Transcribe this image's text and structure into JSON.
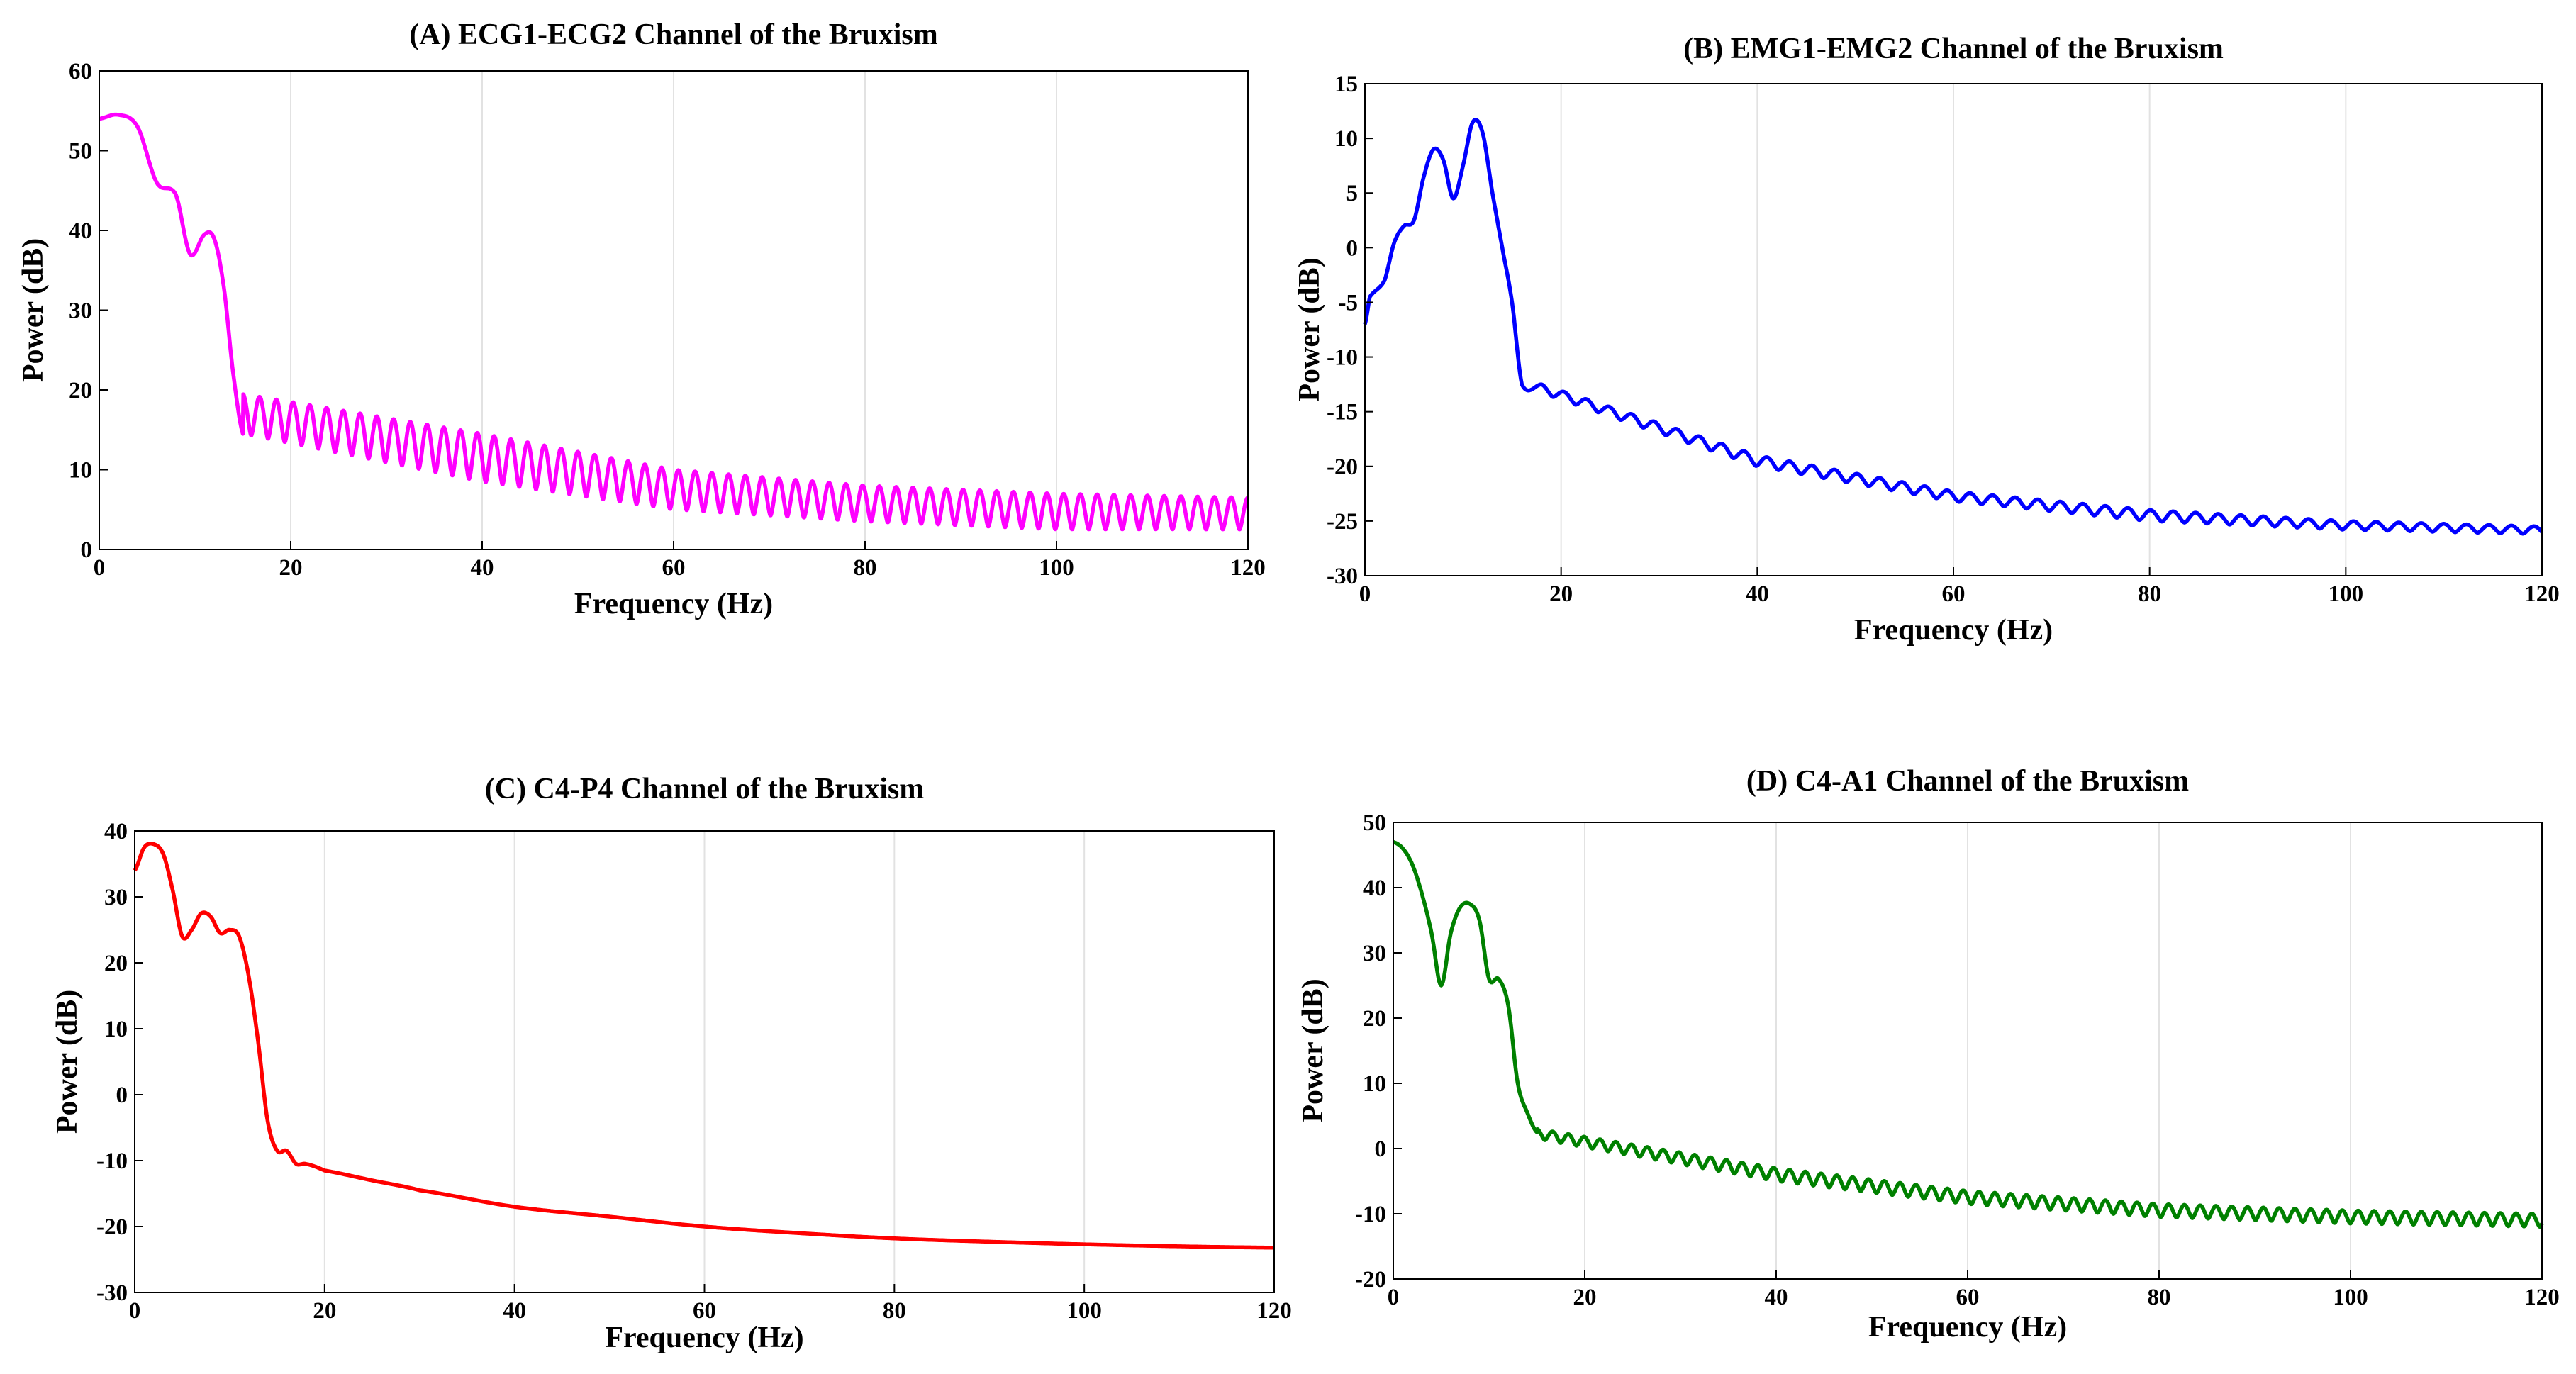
{
  "chart_data": [
    {
      "type": "line",
      "title": "(A) ECG1-ECG2 Channel of the Bruxism",
      "xlabel": "Frequency (Hz)",
      "ylabel": "Power (dB)",
      "xlim": [
        0,
        120
      ],
      "ylim": [
        0,
        60
      ],
      "xticks": [
        0,
        20,
        40,
        60,
        80,
        100,
        120
      ],
      "yticks": [
        0,
        10,
        20,
        30,
        40,
        50,
        60
      ],
      "grid": "vertical",
      "color": "#ff00ff",
      "series": [
        {
          "name": "ECG1-ECG2",
          "anchors": [
            [
              0,
              54
            ],
            [
              2,
              54.5
            ],
            [
              4,
              53
            ],
            [
              6,
              46
            ],
            [
              8,
              44.5
            ],
            [
              9.5,
              37
            ],
            [
              11,
              39.5
            ],
            [
              12,
              39
            ],
            [
              13,
              33
            ],
            [
              14,
              22
            ],
            [
              15,
              14.5
            ]
          ],
          "ripple": {
            "start": 15,
            "end": 120,
            "period": 1.75,
            "upper": [
              [
                15,
                19.5
              ],
              [
                40,
                14.5
              ],
              [
                60,
                10
              ],
              [
                80,
                8
              ],
              [
                100,
                7
              ],
              [
                120,
                6.5
              ]
            ],
            "lower": [
              [
                15,
                14.5
              ],
              [
                40,
                8.5
              ],
              [
                60,
                5
              ],
              [
                80,
                3.5
              ],
              [
                100,
                2.5
              ],
              [
                120,
                2.5
              ]
            ]
          }
        }
      ]
    },
    {
      "type": "line",
      "title": "(B) EMG1-EMG2 Channel of the Bruxism",
      "xlabel": "Frequency (Hz)",
      "ylabel": "Power (dB)",
      "xlim": [
        0,
        120
      ],
      "ylim": [
        -30,
        15
      ],
      "xticks": [
        0,
        20,
        40,
        60,
        80,
        100,
        120
      ],
      "yticks": [
        -30,
        -25,
        -20,
        -15,
        -10,
        -5,
        0,
        5,
        10,
        15
      ],
      "grid": "vertical",
      "color": "#0000ff",
      "series": [
        {
          "name": "EMG1-EMG2",
          "anchors": [
            [
              0,
              -7
            ],
            [
              0.5,
              -4.5
            ],
            [
              2,
              -3
            ],
            [
              3,
              0.5
            ],
            [
              4,
              2
            ],
            [
              5,
              2.5
            ],
            [
              6,
              6.5
            ],
            [
              7,
              9
            ],
            [
              8,
              8
            ],
            [
              9,
              4.5
            ],
            [
              10,
              7.5
            ],
            [
              11,
              11.5
            ],
            [
              12,
              10.5
            ],
            [
              13,
              5
            ],
            [
              14,
              0
            ],
            [
              15,
              -5
            ],
            [
              16,
              -12.5
            ],
            [
              18,
              -12.5
            ]
          ],
          "ripple": {
            "start": 18,
            "end": 120,
            "period": 2.3,
            "upper": [
              [
                18,
                -12.5
              ],
              [
                40,
                -19
              ],
              [
                60,
                -22.3
              ],
              [
                80,
                -24
              ],
              [
                100,
                -25
              ],
              [
                120,
                -25.5
              ]
            ],
            "lower": [
              [
                18,
                -13.3
              ],
              [
                40,
                -20
              ],
              [
                60,
                -23.2
              ],
              [
                80,
                -25
              ],
              [
                100,
                -25.8
              ],
              [
                120,
                -26.2
              ]
            ]
          }
        }
      ]
    },
    {
      "type": "line",
      "title": "(C) C4-P4 Channel of the Bruxism",
      "xlabel": "Frequency (Hz)",
      "ylabel": "Power (dB)",
      "xlim": [
        0,
        120
      ],
      "ylim": [
        -30,
        40
      ],
      "xticks": [
        0,
        20,
        40,
        60,
        80,
        100,
        120
      ],
      "yticks": [
        -30,
        -20,
        -10,
        0,
        10,
        20,
        30,
        40
      ],
      "grid": "vertical",
      "color": "#ff0000",
      "series": [
        {
          "name": "C4-P4",
          "anchors": [
            [
              0,
              34
            ],
            [
              1,
              37.5
            ],
            [
              2,
              38
            ],
            [
              3,
              36.5
            ],
            [
              4,
              31
            ],
            [
              5,
              24
            ],
            [
              6,
              25
            ],
            [
              7,
              27.5
            ],
            [
              8,
              27
            ],
            [
              9,
              24.5
            ],
            [
              10,
              25
            ],
            [
              11,
              24
            ],
            [
              12,
              18
            ],
            [
              13,
              8
            ],
            [
              14,
              -4
            ],
            [
              15,
              -8.5
            ],
            [
              16,
              -8.5
            ],
            [
              17,
              -10.5
            ],
            [
              18,
              -10.5
            ],
            [
              20,
              -11.5
            ],
            [
              25,
              -13
            ],
            [
              30,
              -14.5
            ],
            [
              40,
              -17
            ],
            [
              50,
              -18.5
            ],
            [
              60,
              -20
            ],
            [
              70,
              -21
            ],
            [
              80,
              -21.8
            ],
            [
              90,
              -22.3
            ],
            [
              100,
              -22.7
            ],
            [
              110,
              -23
            ],
            [
              120,
              -23.2
            ]
          ]
        }
      ]
    },
    {
      "type": "line",
      "title": "(D) C4-A1 Channel of the Bruxism",
      "xlabel": "Frequency (Hz)",
      "ylabel": "Power (dB)",
      "xlim": [
        0,
        120
      ],
      "ylim": [
        -20,
        50
      ],
      "xticks": [
        0,
        20,
        40,
        60,
        80,
        100,
        120
      ],
      "yticks": [
        -20,
        -10,
        0,
        10,
        20,
        30,
        40,
        50
      ],
      "grid": "vertical",
      "color": "#008000",
      "series": [
        {
          "name": "C4-A1",
          "anchors": [
            [
              0,
              47
            ],
            [
              1,
              46
            ],
            [
              2,
              43.5
            ],
            [
              3,
              39
            ],
            [
              4,
              33
            ],
            [
              5,
              25
            ],
            [
              6,
              33
            ],
            [
              7,
              37
            ],
            [
              8,
              37.5
            ],
            [
              9,
              35
            ],
            [
              10,
              26
            ],
            [
              11,
              26
            ],
            [
              12,
              22
            ],
            [
              13,
              10
            ],
            [
              14,
              5.5
            ],
            [
              15,
              2.5
            ]
          ],
          "ripple": {
            "start": 15,
            "end": 120,
            "period": 1.65,
            "upper": [
              [
                15,
                3
              ],
              [
                40,
                -3
              ],
              [
                60,
                -6.5
              ],
              [
                80,
                -8.5
              ],
              [
                100,
                -9.5
              ],
              [
                120,
                -10
              ]
            ],
            "lower": [
              [
                15,
                1.5
              ],
              [
                40,
                -5
              ],
              [
                60,
                -8.5
              ],
              [
                80,
                -10.5
              ],
              [
                100,
                -11.5
              ],
              [
                120,
                -12
              ]
            ]
          }
        }
      ]
    }
  ]
}
